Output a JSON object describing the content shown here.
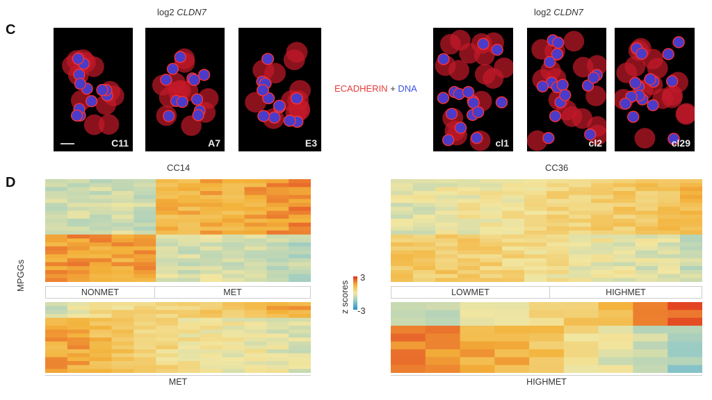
{
  "panel_c": {
    "label": "C",
    "title_prefix": "log2 ",
    "gene": "CLDN7",
    "stain": {
      "marker": "ECADHERIN",
      "plus": " + ",
      "dna": "DNA",
      "marker_color": "#e83a3a",
      "dna_color": "#3a4fe8"
    },
    "left_images": [
      "C11",
      "A7",
      "E3"
    ],
    "right_images": [
      "cl1",
      "cl2",
      "cl29"
    ]
  },
  "panel_d": {
    "label": "D",
    "ylabel": "MPGGs",
    "legend": {
      "title": "z scores",
      "max": "3",
      "min": "-3",
      "colors": [
        "#2a8fc4",
        "#8fc8c8",
        "#f2e6a0",
        "#f3b23a",
        "#e0301e"
      ]
    },
    "cc14": {
      "title": "CC14",
      "groups": [
        "NONMET",
        "MET"
      ],
      "bottom_group": "MET",
      "top": {
        "blocks": [
          {
            "rows": 14,
            "cols": [
              -0.6,
              -0.5,
              -0.6,
              -0.5,
              -0.6,
              1.3,
              1.4,
              1.5,
              1.4,
              1.6,
              1.8,
              1.9
            ]
          },
          {
            "rows": 12,
            "cols": [
              1.7,
              1.8,
              1.7,
              1.6,
              1.7,
              -0.4,
              -0.5,
              -0.4,
              -0.5,
              -0.6,
              -0.7,
              -0.8
            ]
          }
        ]
      },
      "bottom": {
        "blocks": [
          {
            "rows": 4,
            "cols": [
              -0.4,
              0.1,
              0.3,
              0.4,
              0.5,
              0.6,
              0.7,
              0.8,
              1.0,
              1.1,
              1.4,
              1.6
            ]
          },
          {
            "rows": 14,
            "cols": [
              1.6,
              1.6,
              1.2,
              1.0,
              0.6,
              0.4,
              0.2,
              0.1,
              0.0,
              -0.1,
              -0.2,
              -0.3
            ]
          }
        ]
      }
    },
    "cc36": {
      "title": "CC36",
      "groups": [
        "LOWMET",
        "HIGHMET"
      ],
      "bottom_group": "HIGHMET",
      "top": {
        "blocks": [
          {
            "rows": 14,
            "cols": [
              -0.3,
              -0.2,
              -0.1,
              0.0,
              0.0,
              0.1,
              0.3,
              0.5,
              0.6,
              0.7,
              0.8,
              0.9,
              1.0,
              1.3
            ]
          },
          {
            "rows": 12,
            "cols": [
              0.9,
              0.8,
              0.8,
              0.7,
              0.6,
              0.5,
              0.3,
              0.2,
              0.0,
              -0.1,
              -0.2,
              -0.3,
              -0.4,
              -0.6
            ]
          }
        ]
      },
      "bottom": {
        "blocks": [
          {
            "rows": 3,
            "cols": [
              -1.0,
              -0.5,
              0.0,
              0.2,
              0.6,
              1.0,
              1.4,
              1.8,
              2.4
            ]
          },
          {
            "rows": 6,
            "cols": [
              2.0,
              1.8,
              1.5,
              1.4,
              1.0,
              0.2,
              -0.2,
              -0.5,
              -1.2
            ]
          }
        ]
      }
    }
  }
}
